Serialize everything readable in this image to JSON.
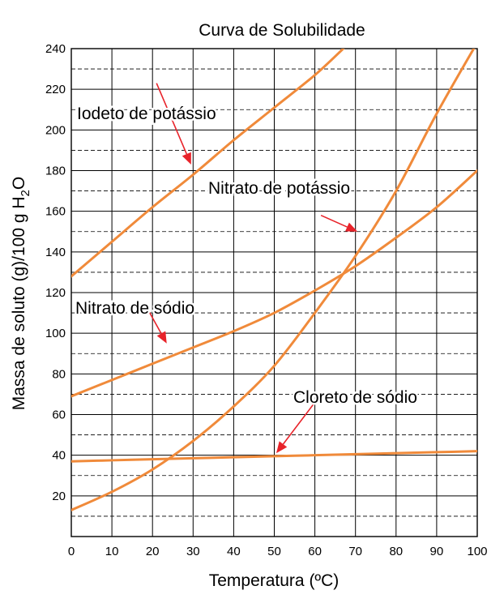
{
  "chart_data": {
    "type": "line",
    "title": "Curva de Solubilidade",
    "xlabel": "Temperatura (ºC)",
    "ylabel_main": "Massa de soluto (g)/100 g H",
    "ylabel_sub": "2",
    "ylabel_end": "O",
    "xlim": [
      0,
      100
    ],
    "ylim": [
      0,
      240
    ],
    "xticks": [
      0,
      10,
      20,
      30,
      40,
      50,
      60,
      70,
      80,
      90,
      100
    ],
    "yticks": [
      20,
      40,
      60,
      80,
      100,
      120,
      140,
      160,
      180,
      200,
      220,
      240
    ],
    "grid": true,
    "colors": {
      "curve": "#f08a3a",
      "arrow": "#e8232a"
    },
    "series": [
      {
        "name": "Iodeto de potássio",
        "x": [
          0,
          10,
          20,
          30,
          40,
          50,
          60,
          67
        ],
        "y": [
          128,
          145,
          162,
          178,
          195,
          211,
          227,
          240
        ]
      },
      {
        "name": "Nitrato de potássio",
        "x": [
          0,
          10,
          20,
          30,
          40,
          50,
          60,
          70,
          80,
          90,
          100
        ],
        "y": [
          13,
          22,
          33,
          47,
          64,
          84,
          110,
          138,
          170,
          208,
          243
        ]
      },
      {
        "name": "Nitrato de sódio",
        "x": [
          0,
          10,
          20,
          30,
          40,
          50,
          60,
          70,
          80,
          90,
          100
        ],
        "y": [
          69,
          77,
          85,
          93,
          101,
          110,
          121,
          133,
          147,
          162,
          180
        ]
      },
      {
        "name": "Cloreto de sódio",
        "x": [
          0,
          10,
          20,
          30,
          40,
          50,
          60,
          70,
          80,
          90,
          100
        ],
        "y": [
          37,
          37.5,
          38,
          38.5,
          39,
          39.5,
          40,
          40.5,
          41,
          41.5,
          42
        ]
      }
    ],
    "annotations": [
      {
        "text": "Iodeto de potássio",
        "arrow_from": [
          21,
          223
        ],
        "arrow_to": [
          29.5,
          183
        ]
      },
      {
        "text": "Nitrato de potássio",
        "arrow_from": [
          61.5,
          158
        ],
        "arrow_to": [
          70.5,
          150
        ]
      },
      {
        "text": "Nitrato de sódio",
        "arrow_from": [
          18.5,
          113
        ],
        "arrow_to": [
          23.5,
          95
        ]
      },
      {
        "text": "Cloreto de sódio",
        "arrow_from": [
          60,
          66
        ],
        "arrow_to": [
          50.5,
          41
        ]
      }
    ]
  }
}
